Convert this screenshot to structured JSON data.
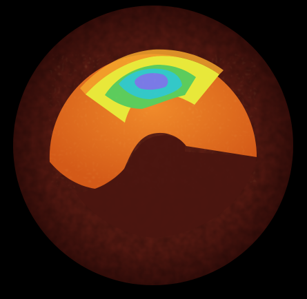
{
  "image": {
    "kind": "circular-ultrasound-heatmap",
    "background": "#000000",
    "colors": {
      "outer_disc": "#5a1a12",
      "outer_disc_dark": "#3a0e0a",
      "inner_region": "#e0651a",
      "inner_region_light": "#f08a2a",
      "dark_blob": "#4a150f",
      "warm_band": "#f4a52c",
      "yellow_band": "#e8e83a",
      "green_band": "#5ccc5c",
      "cyan_band": "#33c8c8",
      "blue_core": "#7a7ae6"
    }
  }
}
